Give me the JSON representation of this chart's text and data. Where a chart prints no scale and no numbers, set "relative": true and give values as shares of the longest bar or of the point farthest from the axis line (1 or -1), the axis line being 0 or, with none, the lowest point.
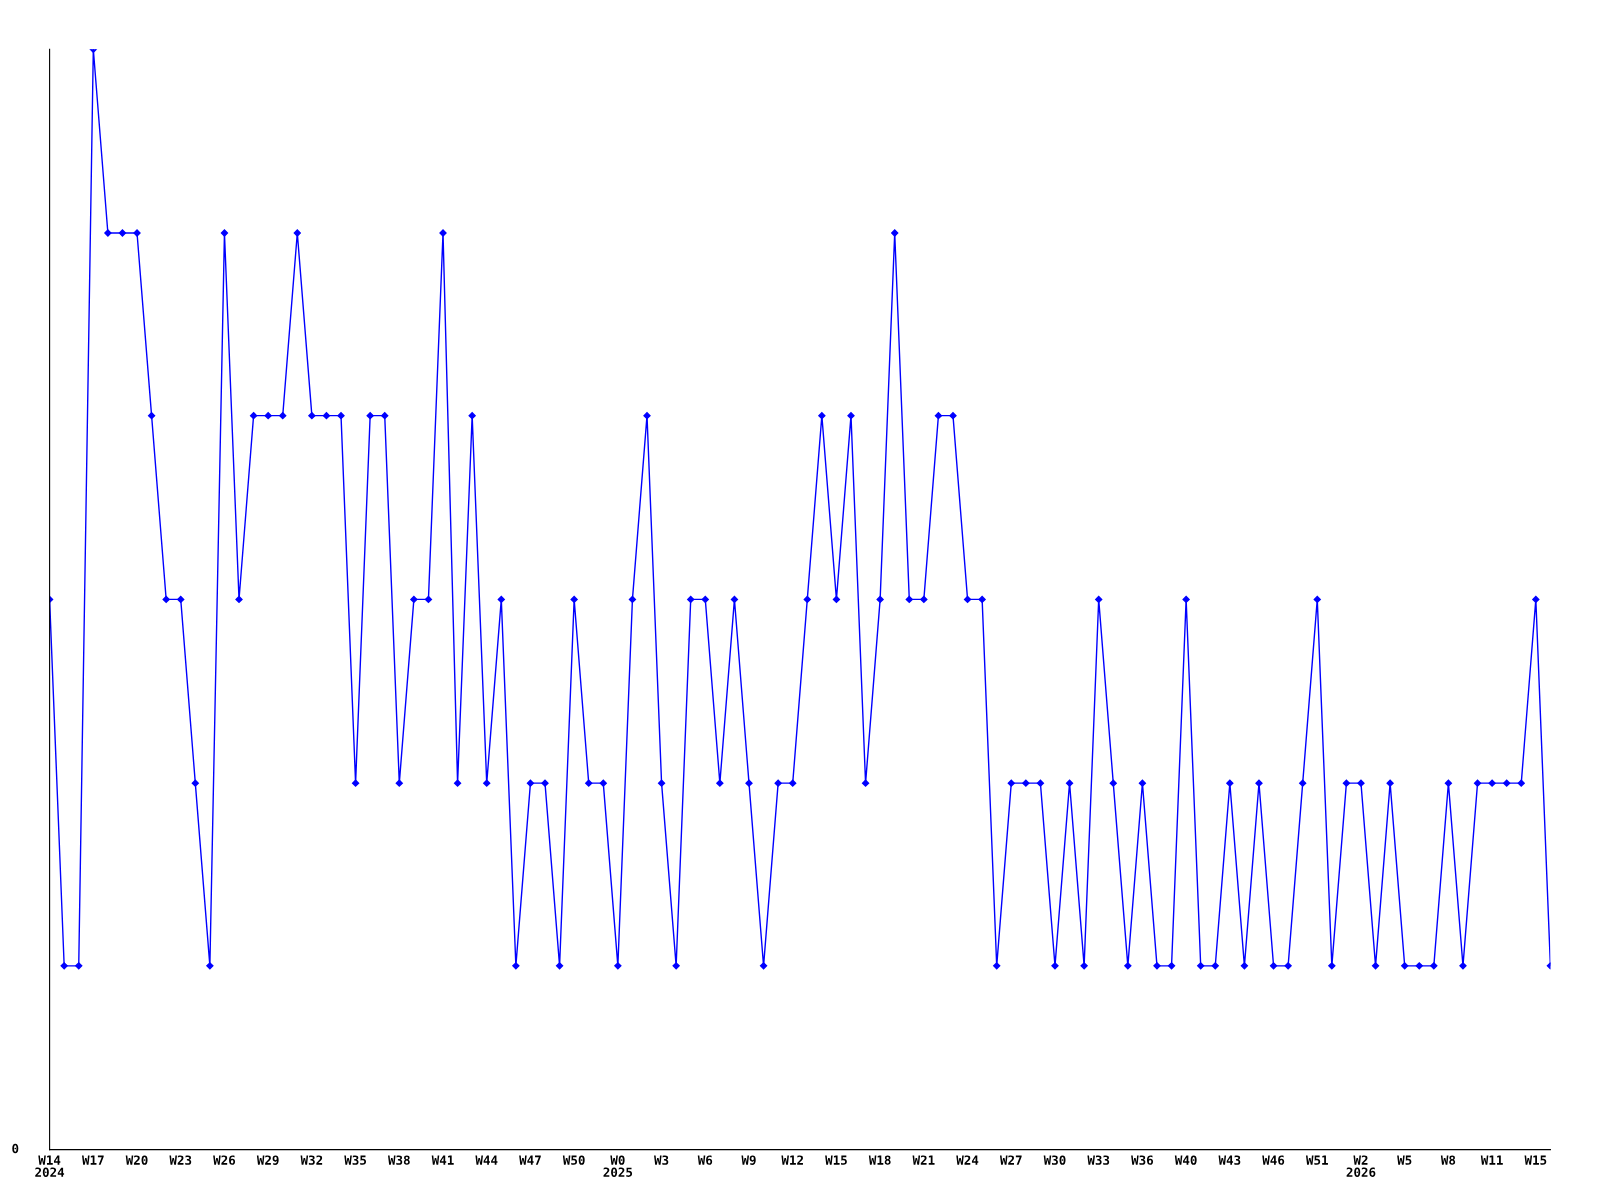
{
  "chart_data": {
    "type": "line",
    "relative": true,
    "marker": "diamond",
    "line_style": "solid",
    "grid": false,
    "legend": false,
    "categories": [
      "W14\n2024",
      null,
      null,
      "W17",
      null,
      null,
      "W20",
      null,
      null,
      "W23",
      null,
      null,
      "W26",
      null,
      null,
      "W29",
      null,
      null,
      "W32",
      null,
      null,
      "W35",
      null,
      null,
      "W38",
      null,
      null,
      "W41",
      null,
      null,
      "W44",
      null,
      null,
      "W47",
      null,
      null,
      "W50",
      null,
      null,
      "W0\n2025",
      null,
      null,
      "W3",
      null,
      null,
      "W6",
      null,
      null,
      "W9",
      null,
      null,
      "W12",
      null,
      null,
      "W15",
      null,
      null,
      "W18",
      null,
      null,
      "W21",
      null,
      null,
      "W24",
      null,
      null,
      "W27",
      null,
      null,
      "W30",
      null,
      null,
      "W33",
      null,
      null,
      "W36",
      null,
      null,
      "W40",
      null,
      null,
      "W43",
      null,
      null,
      "W46",
      null,
      null,
      "W51",
      null,
      null,
      "W2\n2026",
      null,
      null,
      "W5",
      null,
      null,
      "W8",
      null,
      null,
      "W11",
      null,
      null,
      "W15",
      null
    ],
    "series": [
      {
        "color": "#0000ff",
        "values": [
          0.5,
          0.167,
          0.167,
          1,
          0.833,
          0.833,
          0.833,
          0.667,
          0.5,
          0.5,
          0.333,
          0.167,
          0.833,
          0.5,
          0.667,
          0.667,
          0.667,
          0.833,
          0.667,
          0.667,
          0.667,
          0.333,
          0.667,
          0.667,
          0.333,
          0.5,
          0.5,
          0.833,
          0.333,
          0.667,
          0.333,
          0.5,
          0.167,
          0.333,
          0.333,
          0.167,
          0.5,
          0.333,
          0.333,
          0.167,
          0.5,
          0.667,
          0.333,
          0.167,
          0.5,
          0.5,
          0.333,
          0.5,
          0.333,
          0.167,
          0.333,
          0.333,
          0.5,
          0.667,
          0.5,
          0.667,
          0.333,
          0.5,
          0.833,
          0.5,
          0.5,
          0.667,
          0.667,
          0.5,
          0.5,
          0.167,
          0.333,
          0.333,
          0.333,
          0.167,
          0.333,
          0.167,
          0.5,
          0.333,
          0.167,
          0.333,
          0.167,
          0.167,
          0.5,
          0.167,
          0.167,
          0.333,
          0.167,
          0.333,
          0.167,
          0.167,
          0.333,
          0.5,
          0.167,
          0.333,
          0.333,
          0.167,
          0.333,
          0.167,
          0.167,
          0.167,
          0.333,
          0.167,
          0.333,
          0.333,
          0.333,
          0.333,
          0.5,
          0.167
        ]
      }
    ],
    "annotations": [
      "0"
    ]
  }
}
